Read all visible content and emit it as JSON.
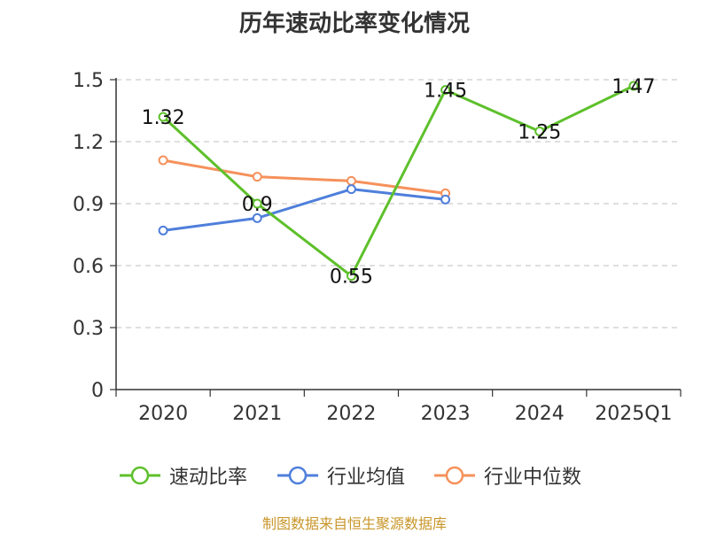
{
  "colors": {
    "sudong": "#5ec02b",
    "avg": "#4f7fdb",
    "median": "#f5915b",
    "grid": "#cccccc",
    "axis": "#333333",
    "source": "#c8962a"
  },
  "source_text": "制图数据来自恒生聚源数据库",
  "chart_data": {
    "type": "line",
    "title": "历年速动比率变化情况",
    "categories": [
      "2020",
      "2021",
      "2022",
      "2023",
      "2024",
      "2025Q1"
    ],
    "ylim": [
      0,
      1.5
    ],
    "yticks": [
      0,
      0.3,
      0.6,
      0.9,
      1.2,
      1.5
    ],
    "ytick_labels": [
      "0",
      "0.3",
      "0.6",
      "0.9",
      "1.2",
      "1.5"
    ],
    "grid": true,
    "legend_position": "bottom",
    "series": [
      {
        "name": "速动比率",
        "color_key": "sudong",
        "values": [
          1.32,
          0.9,
          0.55,
          1.45,
          1.25,
          1.47
        ],
        "labels": [
          "1.32",
          "0.9",
          "0.55",
          "1.45",
          "1.25",
          "1.47"
        ],
        "show_labels": true
      },
      {
        "name": "行业均值",
        "color_key": "avg",
        "values": [
          0.77,
          0.83,
          0.97,
          0.92,
          null,
          null
        ],
        "show_labels": false
      },
      {
        "name": "行业中位数",
        "color_key": "median",
        "values": [
          1.11,
          1.03,
          1.01,
          0.95,
          null,
          null
        ],
        "show_labels": false
      }
    ]
  }
}
